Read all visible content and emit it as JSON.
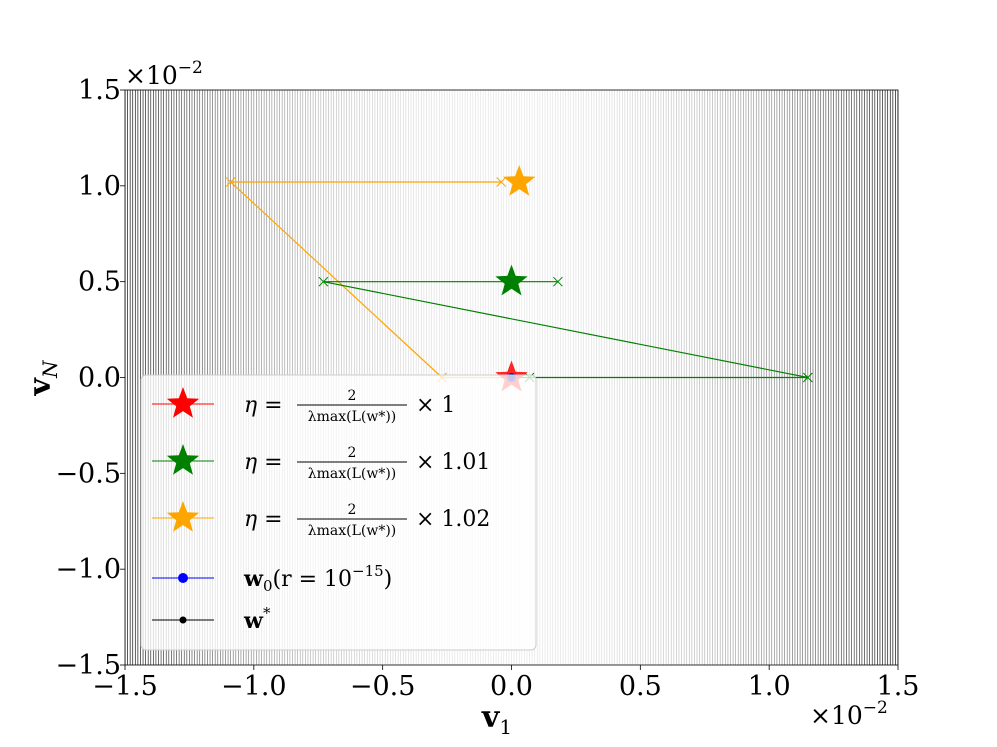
{
  "chart_data": {
    "type": "line",
    "xlabel": "v",
    "xlabel_sub": "1",
    "ylabel": "v",
    "ylabel_sub": "N",
    "x_multiplier": "×10",
    "x_multiplier_exp": "−2",
    "y_multiplier": "×10",
    "y_multiplier_exp": "−2",
    "xlim": [
      -1.5,
      1.5
    ],
    "ylim": [
      -1.5,
      1.5
    ],
    "x_ticks": [
      -1.5,
      -1.0,
      -0.5,
      0.0,
      0.5,
      1.0,
      1.5
    ],
    "x_tick_labels": [
      "−1.5",
      "−1.0",
      "−0.5",
      "0.0",
      "0.5",
      "1.0",
      "1.5"
    ],
    "y_ticks": [
      -1.5,
      -1.0,
      -0.5,
      0.0,
      0.5,
      1.0,
      1.5
    ],
    "y_tick_labels": [
      "−1.5",
      "−1.0",
      "−0.5",
      "0.0",
      "0.5",
      "1.0",
      "1.5"
    ],
    "background": "vertical contour lines of the loss, dense near x = ±1.5",
    "grid": false,
    "legend_position": "lower-left",
    "series": [
      {
        "name": "η = 2/λmax(L(w*)) × 1",
        "legend_prefix": "η =",
        "legend_frac_num": "2",
        "legend_frac_den": "λmax(L(w*))",
        "legend_suffix": "× 1",
        "color": "#ff0000",
        "marker": "star",
        "points": [
          [
            0.0,
            0.0
          ]
        ],
        "final": [
          0.0,
          0.0
        ]
      },
      {
        "name": "η = 2/λmax(L(w*)) × 1.01",
        "legend_prefix": "η =",
        "legend_frac_num": "2",
        "legend_frac_den": "λmax(L(w*))",
        "legend_suffix": "× 1.01",
        "color": "#008000",
        "marker": "star",
        "points": [
          [
            0.0,
            0.0
          ],
          [
            0.07,
            0.0
          ],
          [
            1.15,
            0.0
          ],
          [
            -0.73,
            0.5
          ],
          [
            0.18,
            0.5
          ]
        ],
        "final": [
          0.0,
          0.5
        ]
      },
      {
        "name": "η = 2/λmax(L(w*)) × 1.02",
        "legend_prefix": "η =",
        "legend_frac_num": "2",
        "legend_frac_den": "λmax(L(w*))",
        "legend_suffix": "× 1.02",
        "color": "#ffa500",
        "marker": "star",
        "points": [
          [
            0.0,
            0.0
          ],
          [
            -0.27,
            0.0
          ],
          [
            -1.09,
            1.02
          ],
          [
            -0.04,
            1.02
          ]
        ],
        "final": [
          0.03,
          1.02
        ]
      },
      {
        "name": "w0(r = 10^-15)",
        "legend_main": "w",
        "legend_sub": "0",
        "legend_mid": "(r = 10",
        "legend_sup": "−15",
        "legend_end": ")",
        "color": "#0000ff",
        "marker": "dot",
        "points": [
          [
            0.0,
            0.0
          ]
        ]
      },
      {
        "name": "w*",
        "legend_main": "w",
        "legend_sup": "*",
        "color": "#000000",
        "marker": "small-dot",
        "points": [
          [
            0.0,
            0.0
          ]
        ]
      }
    ]
  }
}
